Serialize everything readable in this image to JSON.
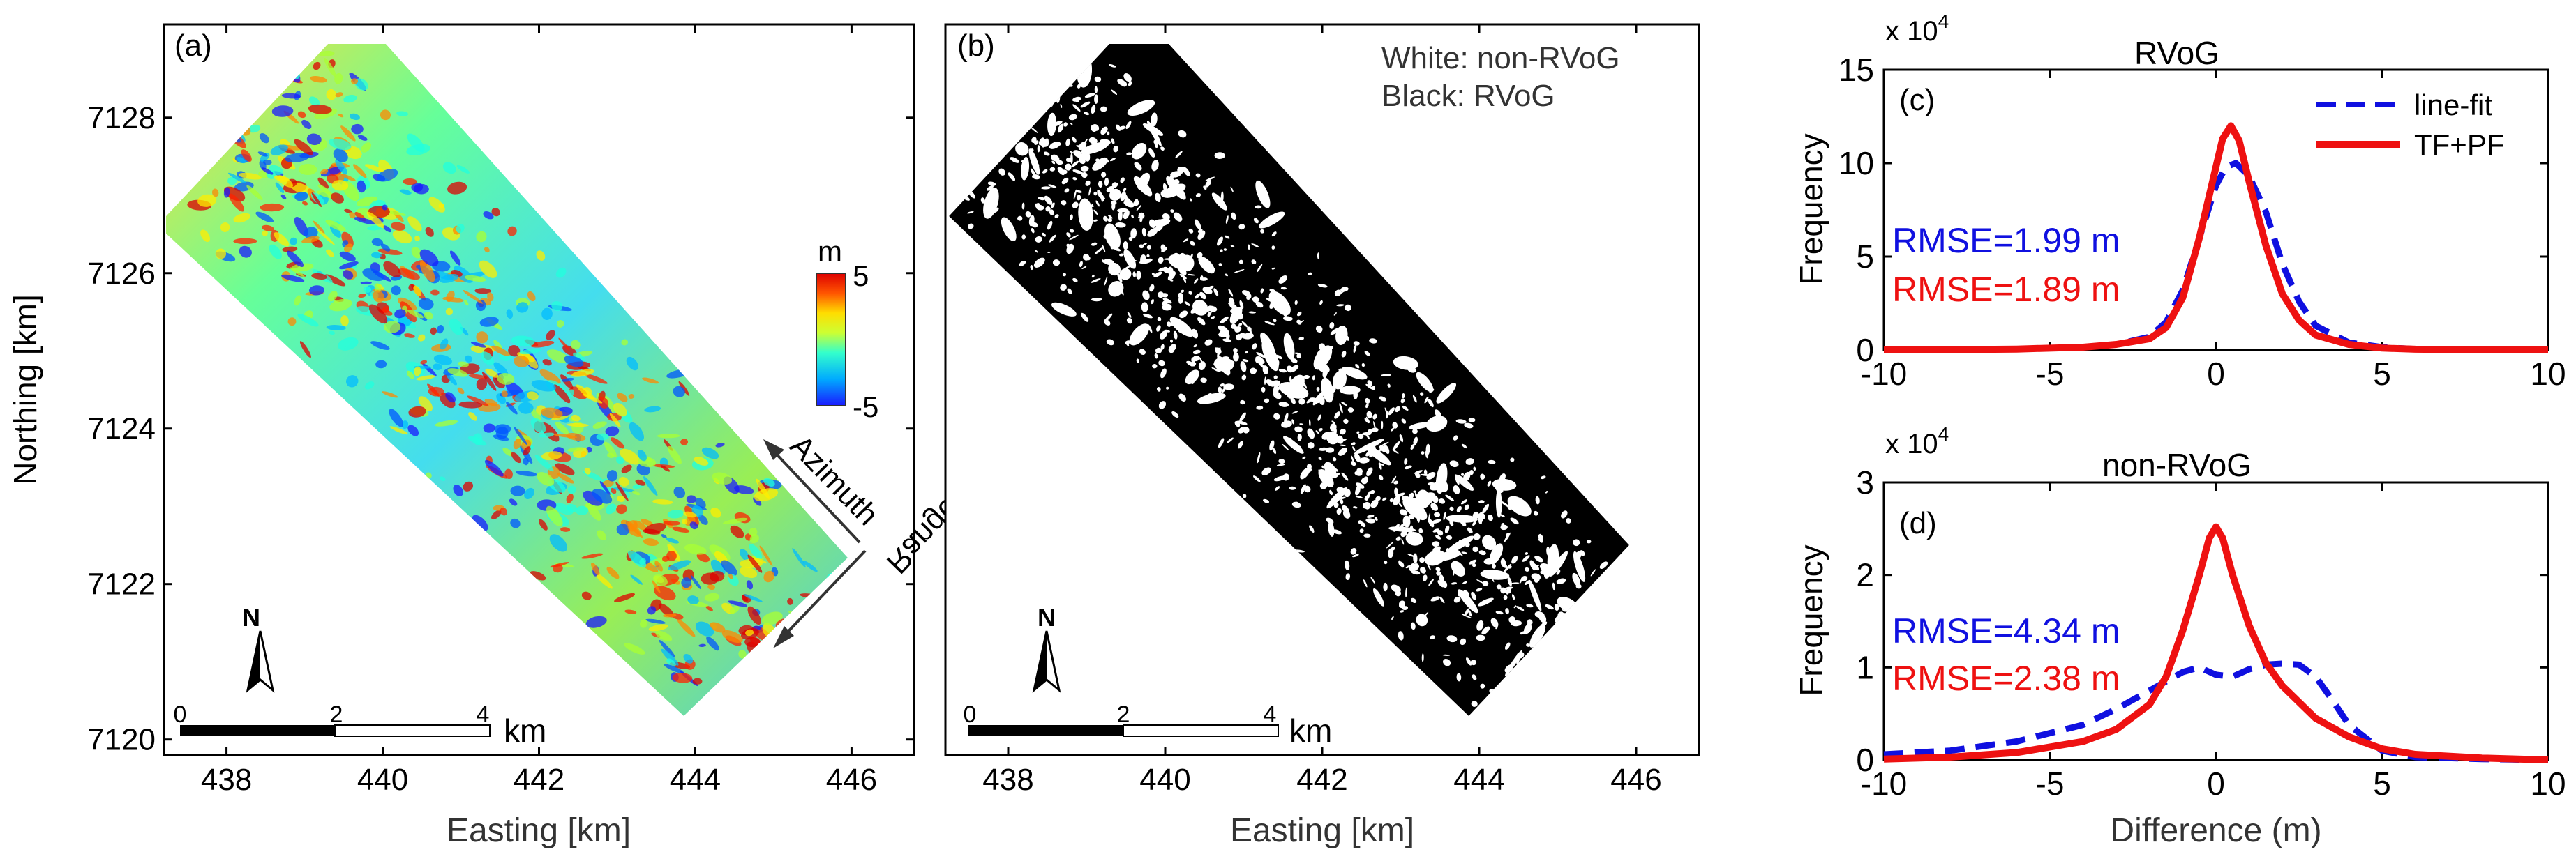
{
  "chart_data": [
    {
      "panel": "(a)",
      "type": "heatmap",
      "xlabel": "Easting [km]",
      "ylabel": "Northing [km]",
      "xlim": [
        437.2,
        446.8
      ],
      "ylim": [
        7119.8,
        7129.2
      ],
      "x_ticks": [
        438,
        440,
        442,
        444,
        446
      ],
      "y_ticks": [
        7120,
        7122,
        7124,
        7126,
        7128
      ],
      "x_tick_labels": [
        "438",
        "440",
        "442",
        "444",
        "446"
      ],
      "y_tick_labels": [
        "7120",
        "7122",
        "7124",
        "7126",
        "7128"
      ],
      "colorbar": {
        "unit": "m",
        "max_label": "5",
        "min_label": "-5",
        "range": [
          -5,
          5
        ]
      },
      "annotations": {
        "azimuth": "Azimuth",
        "range": "Range",
        "north": "N"
      },
      "scale_bar": {
        "labels": [
          "0",
          "2",
          "4"
        ],
        "unit": "km"
      }
    },
    {
      "panel": "(b)",
      "type": "heatmap",
      "xlabel": "Easting [km]",
      "xlim": [
        437.2,
        446.8
      ],
      "ylim": [
        7119.8,
        7129.2
      ],
      "x_ticks": [
        438,
        440,
        442,
        444,
        446
      ],
      "x_tick_labels": [
        "438",
        "440",
        "442",
        "444",
        "446"
      ],
      "legend_text": [
        "White: non-RVoG",
        "Black: RVoG"
      ],
      "annotations": {
        "north": "N"
      },
      "scale_bar": {
        "labels": [
          "0",
          "2",
          "4"
        ],
        "unit": "km"
      }
    },
    {
      "panel": "(c)",
      "type": "line",
      "title": "RVoG",
      "ylabel": "Frequency",
      "y_multiplier": "x 10",
      "y_exponent": "4",
      "xlim": [
        -10,
        10
      ],
      "ylim": [
        0,
        15
      ],
      "x_ticks": [
        -10,
        -5,
        0,
        5,
        10
      ],
      "y_ticks": [
        0,
        5,
        10,
        15
      ],
      "legend_position": "top-right",
      "series": [
        {
          "name": "line-fit",
          "color": "#1010e0",
          "style": "dashed",
          "x": [
            -10,
            -8,
            -6,
            -4,
            -3,
            -2,
            -1.5,
            -1,
            -0.5,
            0,
            0.3,
            0.6,
            1,
            1.5,
            2,
            2.5,
            3,
            4,
            5,
            6,
            8,
            10
          ],
          "values": [
            0,
            0.02,
            0.05,
            0.15,
            0.3,
            0.7,
            1.5,
            3.2,
            6.0,
            8.8,
            9.8,
            10.0,
            9.3,
            7.4,
            4.6,
            2.6,
            1.3,
            0.4,
            0.15,
            0.05,
            0.01,
            0
          ]
        },
        {
          "name": "TF+PF",
          "color": "#ee1111",
          "style": "solid",
          "x": [
            -10,
            -8,
            -6,
            -4,
            -3,
            -2,
            -1.5,
            -1,
            -0.5,
            0,
            0.2,
            0.45,
            0.7,
            1,
            1.5,
            2,
            2.5,
            3,
            4,
            5,
            6,
            8,
            10
          ],
          "values": [
            0,
            0.02,
            0.05,
            0.15,
            0.3,
            0.6,
            1.2,
            2.8,
            6.0,
            9.8,
            11.3,
            12.0,
            11.2,
            9.0,
            5.6,
            3.0,
            1.6,
            0.8,
            0.3,
            0.1,
            0.04,
            0.01,
            0
          ]
        }
      ],
      "rmse_labels": [
        {
          "text": "RMSE=1.99 m",
          "color": "#1010e0"
        },
        {
          "text": "RMSE=1.89 m",
          "color": "#ee1111"
        }
      ]
    },
    {
      "panel": "(d)",
      "type": "line",
      "title": "non-RVoG",
      "xlabel": "Difference (m)",
      "ylabel": "Frequency",
      "y_multiplier": "x 10",
      "y_exponent": "4",
      "xlim": [
        -10,
        10
      ],
      "ylim": [
        0,
        3
      ],
      "x_ticks": [
        -10,
        -5,
        0,
        5,
        10
      ],
      "y_ticks": [
        0,
        1,
        2,
        3
      ],
      "series": [
        {
          "name": "line-fit",
          "color": "#1010e0",
          "style": "dashed",
          "x": [
            -10,
            -8,
            -6,
            -4,
            -3,
            -2,
            -1,
            -0.5,
            0,
            0.5,
            1,
            1.5,
            2,
            2.5,
            3,
            3.5,
            4,
            5,
            6,
            8,
            10
          ],
          "values": [
            0.06,
            0.1,
            0.2,
            0.38,
            0.55,
            0.75,
            0.95,
            1.0,
            0.92,
            0.9,
            0.98,
            1.03,
            1.04,
            1.03,
            0.9,
            0.65,
            0.38,
            0.1,
            0.03,
            0.01,
            0
          ]
        },
        {
          "name": "TF+PF",
          "color": "#ee1111",
          "style": "solid",
          "x": [
            -10,
            -8,
            -6,
            -4,
            -3,
            -2,
            -1.5,
            -1,
            -0.5,
            -0.2,
            0,
            0.2,
            0.5,
            1,
            1.5,
            2,
            3,
            4,
            5,
            6,
            8,
            10
          ],
          "values": [
            0.01,
            0.03,
            0.08,
            0.2,
            0.33,
            0.6,
            0.9,
            1.4,
            2.0,
            2.4,
            2.52,
            2.4,
            2.0,
            1.45,
            1.05,
            0.8,
            0.45,
            0.25,
            0.12,
            0.06,
            0.02,
            0
          ]
        }
      ],
      "rmse_labels": [
        {
          "text": "RMSE=4.34 m",
          "color": "#1010e0"
        },
        {
          "text": "RMSE=2.38 m",
          "color": "#ee1111"
        }
      ]
    }
  ]
}
